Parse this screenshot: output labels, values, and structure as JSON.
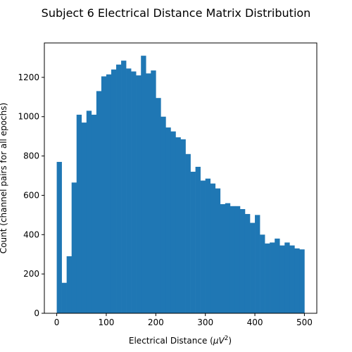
{
  "chart_data": {
    "type": "bar",
    "subtype": "histogram",
    "title": "Subject 6 Electrical Distance Matrix Distribution",
    "xlabel_main": "Electrical Distance (",
    "xlabel_mu": "μV",
    "xlabel_exp": "2",
    "xlabel_close": ")",
    "ylabel": "Count (channel pairs for all epochs)",
    "xlim": [
      -25,
      525
    ],
    "ylim": [
      0,
      1375
    ],
    "xticks": [
      0,
      100,
      200,
      300,
      400,
      500
    ],
    "yticks": [
      0,
      200,
      400,
      600,
      800,
      1000,
      1200
    ],
    "bin_width": 10,
    "bin_start": 0,
    "bar_color": "#1f77b4",
    "values": [
      770,
      155,
      290,
      665,
      1010,
      970,
      1030,
      1010,
      1130,
      1205,
      1215,
      1240,
      1265,
      1285,
      1245,
      1230,
      1210,
      1310,
      1220,
      1235,
      1095,
      1000,
      945,
      925,
      895,
      885,
      810,
      720,
      745,
      675,
      685,
      660,
      635,
      555,
      560,
      545,
      545,
      530,
      505,
      460,
      500,
      400,
      355,
      360,
      380,
      345,
      360,
      345,
      330,
      325
    ]
  }
}
